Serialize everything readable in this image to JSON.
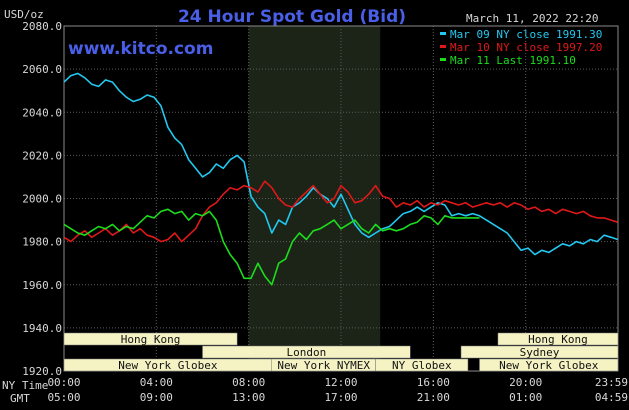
{
  "chart_data": {
    "type": "line",
    "title": "24 Hour Spot Gold (Bid)",
    "site": "www.kitco.com",
    "date_label": "March 11, 2022 22:20",
    "units_label": "USD/oz",
    "ylim": [
      1920,
      2080
    ],
    "y_ticks": [
      "2080.0",
      "2060.0",
      "2040.0",
      "2020.0",
      "2000.0",
      "1980.0",
      "1960.0",
      "1940.0",
      "1920.0"
    ],
    "x_ticks_ny": [
      "00:00",
      "04:00",
      "08:00",
      "12:00",
      "16:00",
      "20:00",
      "23:59"
    ],
    "x_ticks_gmt": [
      "05:00",
      "09:00",
      "13:00",
      "17:00",
      "21:00",
      "01:00",
      "04:59"
    ],
    "row_label_ny": "NY Time",
    "row_label_gmt": "GMT",
    "x_hours_range": [
      0,
      24
    ],
    "shaded_hours": [
      8,
      13.7
    ],
    "grid": true,
    "legend_position": "top-right",
    "series": [
      {
        "name": "Mar 09 NY close 1991.30",
        "color": "#22c8f0",
        "x": [
          0,
          0.3,
          0.6,
          0.9,
          1.2,
          1.5,
          1.8,
          2.1,
          2.4,
          2.7,
          3.0,
          3.3,
          3.6,
          3.9,
          4.2,
          4.5,
          4.8,
          5.1,
          5.4,
          5.7,
          6.0,
          6.3,
          6.6,
          6.9,
          7.2,
          7.5,
          7.8,
          8.1,
          8.4,
          8.7,
          9.0,
          9.3,
          9.6,
          9.9,
          10.2,
          10.5,
          10.8,
          11.1,
          11.4,
          11.7,
          12.0,
          12.3,
          12.6,
          12.9,
          13.2,
          13.5,
          13.8,
          14.1,
          14.4,
          14.7,
          15.0,
          15.3,
          15.6,
          15.9,
          16.2,
          16.5,
          16.8,
          17.1,
          17.4,
          17.7,
          18.0,
          18.3,
          18.6,
          18.9,
          19.2,
          19.5,
          19.8,
          20.1,
          20.4,
          20.7,
          21.0,
          21.3,
          21.6,
          21.9,
          22.2,
          22.5,
          22.8,
          23.1,
          23.4,
          23.7,
          23.99
        ],
        "y": [
          2054,
          2057,
          2058,
          2056,
          2053,
          2052,
          2055,
          2054,
          2050,
          2047,
          2045,
          2046,
          2048,
          2047,
          2043,
          2033,
          2028,
          2025,
          2018,
          2014,
          2010,
          2012,
          2016,
          2014,
          2018,
          2020,
          2017,
          2001,
          1996,
          1993,
          1984,
          1990,
          1988,
          1996,
          1998,
          2001,
          2005,
          2002,
          2000,
          1996,
          2002,
          1995,
          1988,
          1984,
          1982,
          1984,
          1986,
          1987,
          1990,
          1993,
          1994,
          1996,
          1994,
          1996,
          1998,
          1997,
          1992,
          1993,
          1992,
          1993,
          1992,
          1990,
          1988,
          1986,
          1984,
          1980,
          1976,
          1977,
          1974,
          1976,
          1975,
          1977,
          1979,
          1978,
          1980,
          1979,
          1981,
          1980,
          1983,
          1982,
          1981
        ]
      },
      {
        "name": "Mar 10 NY close 1997.20",
        "color": "#e01818",
        "x": [
          0,
          0.3,
          0.6,
          0.9,
          1.2,
          1.5,
          1.8,
          2.1,
          2.4,
          2.7,
          3.0,
          3.3,
          3.6,
          3.9,
          4.2,
          4.5,
          4.8,
          5.1,
          5.4,
          5.7,
          6.0,
          6.3,
          6.6,
          6.9,
          7.2,
          7.5,
          7.8,
          8.1,
          8.4,
          8.7,
          9.0,
          9.3,
          9.6,
          9.9,
          10.2,
          10.5,
          10.8,
          11.1,
          11.4,
          11.7,
          12.0,
          12.3,
          12.6,
          12.9,
          13.2,
          13.5,
          13.8,
          14.1,
          14.4,
          14.7,
          15.0,
          15.3,
          15.6,
          15.9,
          16.2,
          16.5,
          16.8,
          17.1,
          17.4,
          17.7,
          18.0,
          18.3,
          18.6,
          18.9,
          19.2,
          19.5,
          19.8,
          20.1,
          20.4,
          20.7,
          21.0,
          21.3,
          21.6,
          21.9,
          22.2,
          22.5,
          22.8,
          23.1,
          23.4,
          23.7,
          23.99
        ],
        "y": [
          1982,
          1980,
          1983,
          1985,
          1982,
          1984,
          1986,
          1983,
          1985,
          1988,
          1984,
          1986,
          1983,
          1982,
          1980,
          1981,
          1984,
          1980,
          1983,
          1986,
          1992,
          1996,
          1998,
          2002,
          2005,
          2004,
          2006,
          2005,
          2003,
          2008,
          2005,
          2000,
          1997,
          1996,
          2000,
          2003,
          2006,
          2002,
          1998,
          2000,
          2006,
          2003,
          1998,
          1999,
          2002,
          2006,
          2001,
          2000,
          1996,
          1998,
          1997,
          1999,
          1996,
          1998,
          1997,
          1999,
          1998,
          1997,
          1998,
          1996,
          1997,
          1998,
          1997,
          1998,
          1996,
          1998,
          1997,
          1995,
          1996,
          1994,
          1995,
          1993,
          1995,
          1994,
          1993,
          1994,
          1992,
          1991,
          1991,
          1990,
          1989
        ]
      },
      {
        "name": "Mar 11 Last 1991.10",
        "color": "#1cdc1c",
        "x": [
          0,
          0.3,
          0.6,
          0.9,
          1.2,
          1.5,
          1.8,
          2.1,
          2.4,
          2.7,
          3.0,
          3.3,
          3.6,
          3.9,
          4.2,
          4.5,
          4.8,
          5.1,
          5.4,
          5.7,
          6.0,
          6.3,
          6.6,
          6.9,
          7.2,
          7.5,
          7.8,
          8.1,
          8.4,
          8.7,
          9.0,
          9.3,
          9.6,
          9.9,
          10.2,
          10.5,
          10.8,
          11.1,
          11.4,
          11.7,
          12.0,
          12.3,
          12.6,
          12.9,
          13.2,
          13.5,
          13.8,
          14.1,
          14.4,
          14.7,
          15.0,
          15.3,
          15.6,
          15.9,
          16.2,
          16.5,
          16.8,
          17.1,
          17.4,
          17.7,
          18.0
        ],
        "y": [
          1988,
          1986,
          1984,
          1983,
          1985,
          1987,
          1986,
          1988,
          1985,
          1987,
          1986,
          1989,
          1992,
          1991,
          1994,
          1995,
          1993,
          1994,
          1990,
          1993,
          1992,
          1994,
          1990,
          1980,
          1974,
          1970,
          1963,
          1963,
          1970,
          1964,
          1960,
          1970,
          1972,
          1980,
          1984,
          1981,
          1985,
          1986,
          1988,
          1990,
          1986,
          1988,
          1990,
          1986,
          1984,
          1988,
          1985,
          1986,
          1985,
          1986,
          1988,
          1989,
          1992,
          1991,
          1988,
          1992,
          1991,
          1991,
          1991,
          1991,
          1991
        ]
      }
    ]
  },
  "sessions": [
    {
      "label": "Hong Kong",
      "start": 0,
      "end": 7.5,
      "row": 0
    },
    {
      "label": "London",
      "start": 6,
      "end": 15,
      "row": 1
    },
    {
      "label": "New York Globex",
      "start": 0,
      "end": 9,
      "row": 2
    },
    {
      "label": "New York NYMEX",
      "start": 9,
      "end": 13.5,
      "row": 2
    },
    {
      "label": "NY Globex",
      "start": 13.5,
      "end": 17.5,
      "row": 2
    },
    {
      "label": "Hong Kong",
      "start": 18.8,
      "end": 24,
      "row": 0
    },
    {
      "label": "Sydney",
      "start": 17.2,
      "end": 24,
      "row": 1
    },
    {
      "label": "New York Globex",
      "start": 18,
      "end": 24,
      "row": 2
    }
  ],
  "colors": {
    "grid": "#5a5a5a",
    "plot_border": "#8a8a8a",
    "shade": "#1c2418",
    "session_fill": "#f5f3c4"
  }
}
